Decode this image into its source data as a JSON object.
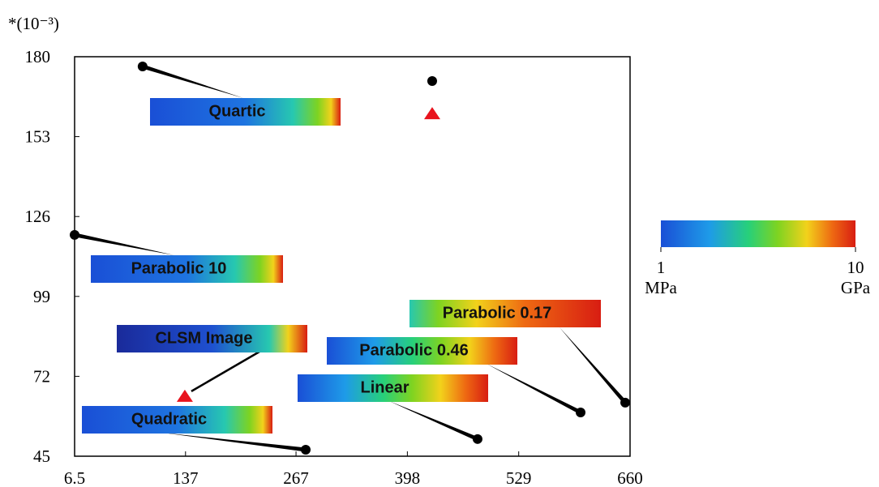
{
  "chart_data": {
    "type": "scatter",
    "y_unit": "*(10⁻³)",
    "xlim": [
      6.5,
      660
    ],
    "xticks": [
      6.5,
      137,
      267,
      398,
      529,
      660
    ],
    "ylim": [
      45,
      180
    ],
    "yticks": [
      45,
      72,
      99,
      126,
      153,
      180
    ],
    "series": [
      {
        "marker": "circle",
        "color": "#000000",
        "x": [
          86.5,
          6.5,
          278.4,
          480.6,
          601.8,
          654.3,
          427.2
        ],
        "values": [
          176.7,
          119.8,
          47.2,
          50.8,
          59.8,
          63.1,
          171.8
        ]
      },
      {
        "marker": "triangle",
        "color": "#e8141e",
        "x": [
          136.2,
          427.2
        ],
        "values": [
          65.3,
          160.8
        ]
      }
    ],
    "annotations": [
      "Quartic",
      "Parabolic 10",
      "CLSM Image",
      "Quadratic",
      "Linear",
      "Parabolic 0.46",
      "Parabolic 0.17"
    ],
    "colorbar": {
      "clim": [
        1,
        10
      ],
      "log": true,
      "ticks": [
        1,
        10
      ],
      "units": [
        "MPa",
        "GPa"
      ]
    }
  }
}
